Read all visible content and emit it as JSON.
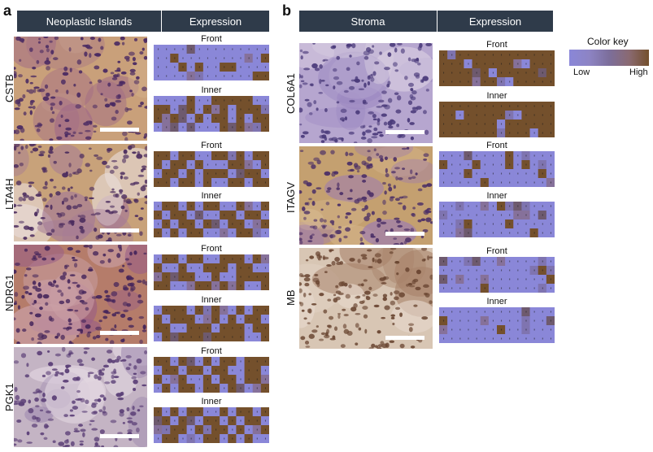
{
  "panel_a": {
    "letter": "a",
    "header_left": "Neoplastic Islands",
    "header_right": "Expression",
    "rows": [
      {
        "gene": "CSTB",
        "front_label": "Front",
        "inner_label": "Inner",
        "front_pattern": [
          "00000000000000",
          "00100000000101",
          "00010100110000",
          "00000000000011"
        ],
        "inner_pattern": [
          "00001001111100",
          "11011011101111",
          "11100101101011",
          "00000000111111"
        ]
      },
      {
        "gene": "LTA4H",
        "front_label": "Front",
        "inner_label": "Inner",
        "front_pattern": [
          "11011001101011",
          "10110100011001",
          "01101011100110",
          "11011010011011"
        ],
        "inner_pattern": [
          "01101011001001",
          "10110100110110",
          "01011011011011",
          "10101100101100"
        ]
      },
      {
        "gene": "NDRG1",
        "front_label": "Front",
        "inner_label": "Inner",
        "front_pattern": [
          "01101100111011",
          "10010011101100",
          "01111001001111",
          "11001110101001"
        ],
        "inner_pattern": [
          "01110111101011",
          "10111011010110",
          "11001110111011",
          "01111101111001"
        ]
      },
      {
        "gene": "PGK1",
        "front_label": "Front",
        "inner_label": "Inner",
        "front_pattern": [
          "11011010110111",
          "01101101100110",
          "10110010110110",
          "01011011011011"
        ],
        "inner_pattern": [
          "10101100101101",
          "01011011010110",
          "10110101101001",
          "01101011010100"
        ]
      }
    ]
  },
  "panel_b": {
    "letter": "b",
    "header_left": "Stroma",
    "header_right": "Expression",
    "rows": [
      {
        "gene": "COL6A1",
        "front_label": "Front",
        "inner_label": "Inner",
        "front_pattern": [
          "11111111111111",
          "11101111110111",
          "11111101111111",
          "11111111011111"
        ],
        "inner_pattern": [
          "11111111111111",
          "11011111101111",
          "11111110111111",
          "11111111111011"
        ]
      },
      {
        "gene": "ITAGV",
        "front_label": "Front",
        "inner_label": "Inner",
        "front_pattern": [
          "00000000100000",
          "10001000101010",
          "00010000000010",
          "00000100000000"
        ],
        "inner_pattern": [
          "00000001000000",
          "00000000000010",
          "00010000100000",
          "00000000000100"
        ]
      },
      {
        "gene": "MB",
        "front_label": "Front",
        "inner_label": "Inner",
        "front_pattern": [
          "00000000000010",
          "00000000000011",
          "00000000000001",
          "00000100000000"
        ],
        "inner_pattern": [
          "00000000000000",
          "10000000001000",
          "00000001000000",
          "00000000000000"
        ]
      }
    ]
  },
  "color_key": {
    "title": "Color key",
    "low_label": "Low",
    "high_label": "High",
    "low_color": "#8a87d8",
    "high_color": "#74502c"
  }
}
